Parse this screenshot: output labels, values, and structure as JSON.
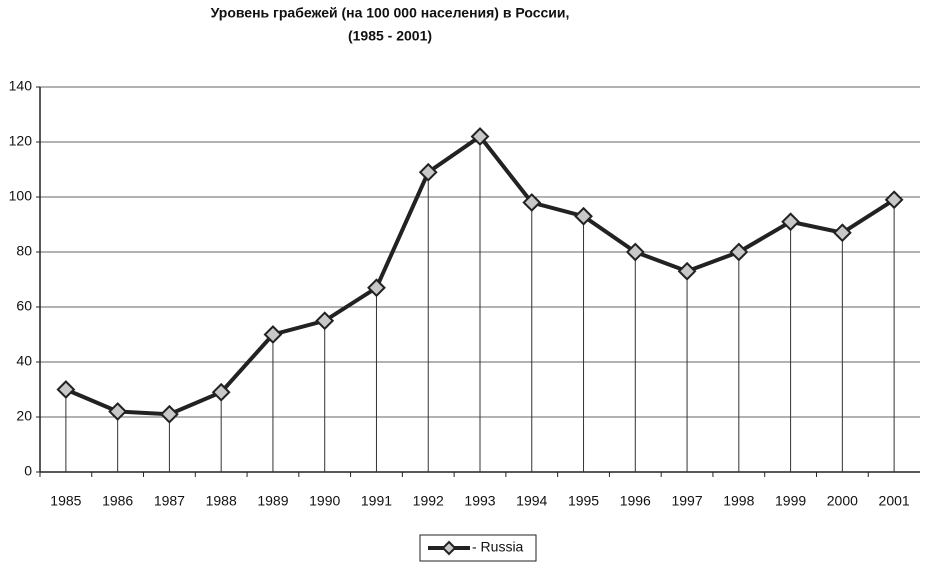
{
  "chart_data": {
    "type": "line",
    "title": "Уровень грабежей (на 100 000 населения) в России,",
    "subtitle": "(1985 - 2001)",
    "categories": [
      "1985",
      "1986",
      "1987",
      "1988",
      "1989",
      "1990",
      "1991",
      "1992",
      "1993",
      "1994",
      "1995",
      "1996",
      "1997",
      "1998",
      "1999",
      "2000",
      "2001"
    ],
    "series": [
      {
        "name": "- Russia",
        "color": "#222222",
        "values": [
          30,
          22,
          21,
          29,
          50,
          55,
          67,
          109,
          122,
          98,
          93,
          80,
          73,
          80,
          91,
          87,
          99
        ]
      }
    ],
    "ylim": [
      0,
      140
    ],
    "yticks": [
      0,
      20,
      40,
      60,
      80,
      100,
      120,
      140
    ],
    "grid": true,
    "drop_lines": true,
    "legend": "bottom",
    "marker": "diamond",
    "marker_color": "#c8c8c8"
  }
}
